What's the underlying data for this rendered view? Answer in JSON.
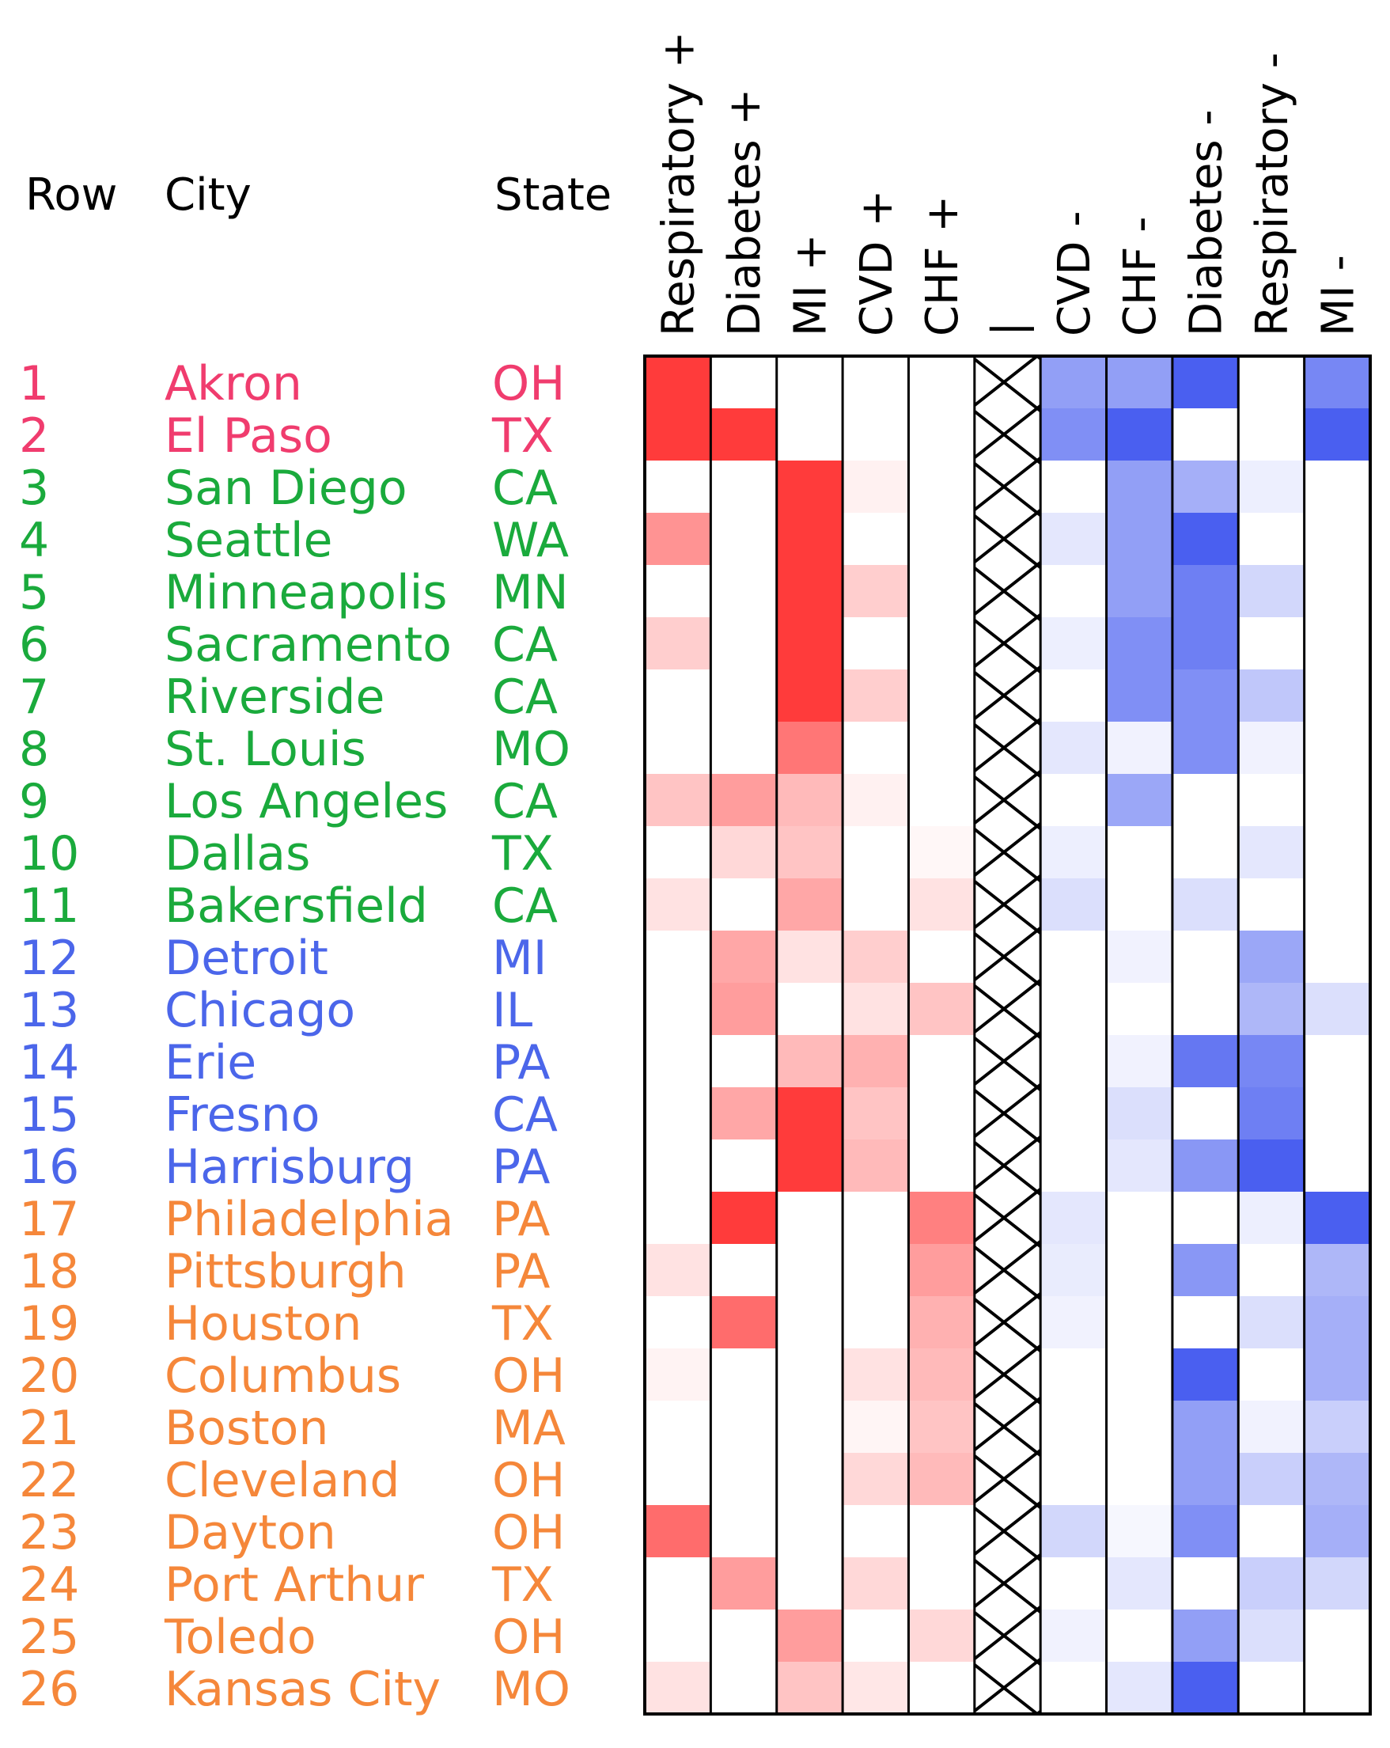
{
  "chart_data": {
    "type": "heatmap",
    "title": "",
    "xlabel": "",
    "ylabel": "",
    "headers": {
      "row": "Row",
      "city": "City",
      "state": "State"
    },
    "columns": [
      "Respiratory +",
      "Diabetes +",
      "MI +",
      "CVD +",
      "CHF +",
      "|",
      "CVD -",
      "CHF -",
      "Diabetes -",
      "Respiratory -",
      "MI -"
    ],
    "excluded_column": "|",
    "value_range": [
      -1,
      1
    ],
    "colors": {
      "positive": "#ff3b3b",
      "negative": "#4a5ff0",
      "zero": "#ffffff",
      "group1": "#f03c6e",
      "group2": "#1aaa3c",
      "group3": "#4b66ea",
      "group4": "#f5873a"
    },
    "rows": [
      {
        "row": "1",
        "city": "Akron",
        "state": "OH",
        "group": 1,
        "values": [
          1.0,
          0,
          0,
          0,
          0,
          null,
          -0.6,
          -0.6,
          -1.0,
          0,
          -0.75
        ]
      },
      {
        "row": "2",
        "city": "El Paso",
        "state": "TX",
        "group": 1,
        "values": [
          1.0,
          1.0,
          0,
          0,
          0,
          null,
          -0.7,
          -1.0,
          0,
          0,
          -1.0
        ]
      },
      {
        "row": "3",
        "city": "San Diego",
        "state": "CA",
        "group": 2,
        "values": [
          0,
          0,
          1.0,
          0.07,
          0,
          null,
          0,
          -0.6,
          -0.5,
          -0.1,
          0
        ]
      },
      {
        "row": "4",
        "city": "Seattle",
        "state": "WA",
        "group": 2,
        "values": [
          0.55,
          0,
          1.0,
          0,
          0,
          null,
          -0.15,
          -0.6,
          -1.0,
          0,
          0
        ]
      },
      {
        "row": "5",
        "city": "Minneapolis",
        "state": "MN",
        "group": 2,
        "values": [
          0,
          0,
          1.0,
          0.25,
          0,
          null,
          0,
          -0.6,
          -0.8,
          -0.25,
          0
        ]
      },
      {
        "row": "6",
        "city": "Sacramento",
        "state": "CA",
        "group": 2,
        "values": [
          0.25,
          0,
          1.0,
          0,
          0,
          null,
          -0.1,
          -0.7,
          -0.8,
          0,
          0
        ]
      },
      {
        "row": "7",
        "city": "Riverside",
        "state": "CA",
        "group": 2,
        "values": [
          0,
          0,
          1.0,
          0.25,
          0,
          null,
          0,
          -0.7,
          -0.7,
          -0.35,
          0
        ]
      },
      {
        "row": "8",
        "city": "St. Louis",
        "state": "MO",
        "group": 2,
        "values": [
          0,
          0,
          0.7,
          0,
          0,
          null,
          -0.15,
          -0.08,
          -0.7,
          -0.08,
          0
        ]
      },
      {
        "row": "9",
        "city": "Los Angeles",
        "state": "CA",
        "group": 2,
        "values": [
          0.3,
          0.5,
          0.35,
          0.07,
          0,
          null,
          0,
          -0.55,
          0,
          0,
          0
        ]
      },
      {
        "row": "10",
        "city": "Dallas",
        "state": "TX",
        "group": 2,
        "values": [
          0,
          0.2,
          0.3,
          0,
          0.04,
          null,
          -0.1,
          0,
          0,
          -0.15,
          0
        ]
      },
      {
        "row": "11",
        "city": "Bakersfield",
        "state": "CA",
        "group": 2,
        "values": [
          0.15,
          0,
          0.45,
          0,
          0.15,
          null,
          -0.2,
          0,
          -0.2,
          0,
          0
        ]
      },
      {
        "row": "12",
        "city": "Detroit",
        "state": "MI",
        "group": 3,
        "values": [
          0,
          0.45,
          0.15,
          0.25,
          0,
          null,
          0,
          -0.08,
          0,
          -0.55,
          0
        ]
      },
      {
        "row": "13",
        "city": "Chicago",
        "state": "IL",
        "group": 3,
        "values": [
          0,
          0.5,
          0,
          0.15,
          0.3,
          null,
          0,
          0,
          0,
          -0.45,
          -0.2
        ]
      },
      {
        "row": "14",
        "city": "Erie",
        "state": "PA",
        "group": 3,
        "values": [
          0,
          0,
          0.35,
          0.4,
          0,
          null,
          0,
          -0.08,
          -0.85,
          -0.75,
          0
        ]
      },
      {
        "row": "15",
        "city": "Fresno",
        "state": "CA",
        "group": 3,
        "values": [
          0,
          0.45,
          1.0,
          0.3,
          0,
          null,
          0,
          -0.2,
          0,
          -0.8,
          0
        ]
      },
      {
        "row": "16",
        "city": "Harrisburg",
        "state": "PA",
        "group": 3,
        "values": [
          0,
          0,
          1.0,
          0.35,
          0,
          null,
          0,
          -0.15,
          -0.65,
          -1.0,
          0
        ]
      },
      {
        "row": "17",
        "city": "Philadelphia",
        "state": "PA",
        "group": 4,
        "values": [
          0,
          1.0,
          0,
          0,
          0.65,
          null,
          -0.15,
          0,
          0,
          -0.1,
          -1.0
        ]
      },
      {
        "row": "18",
        "city": "Pittsburgh",
        "state": "PA",
        "group": 4,
        "values": [
          0.15,
          0,
          0,
          0,
          0.5,
          null,
          -0.12,
          0,
          -0.65,
          0,
          -0.45
        ]
      },
      {
        "row": "19",
        "city": "Houston",
        "state": "TX",
        "group": 4,
        "values": [
          0,
          0.75,
          0,
          0,
          0.4,
          null,
          -0.08,
          0,
          0,
          -0.2,
          -0.5
        ]
      },
      {
        "row": "20",
        "city": "Columbus",
        "state": "OH",
        "group": 4,
        "values": [
          0.06,
          0,
          0,
          0.15,
          0.35,
          null,
          0,
          0,
          -1.0,
          0,
          -0.5
        ]
      },
      {
        "row": "21",
        "city": "Boston",
        "state": "MA",
        "group": 4,
        "values": [
          0,
          0,
          0,
          0.05,
          0.3,
          null,
          0,
          0,
          -0.6,
          -0.08,
          -0.3
        ]
      },
      {
        "row": "22",
        "city": "Cleveland",
        "state": "OH",
        "group": 4,
        "values": [
          0,
          0,
          0,
          0.2,
          0.35,
          null,
          0,
          0,
          -0.6,
          -0.3,
          -0.45
        ]
      },
      {
        "row": "23",
        "city": "Dayton",
        "state": "OH",
        "group": 4,
        "values": [
          0.75,
          0,
          0,
          0,
          0,
          null,
          -0.25,
          -0.05,
          -0.7,
          0,
          -0.5
        ]
      },
      {
        "row": "24",
        "city": "Port Arthur",
        "state": "TX",
        "group": 4,
        "values": [
          0,
          0.5,
          0,
          0.2,
          0,
          null,
          0,
          -0.15,
          0,
          -0.3,
          -0.25
        ]
      },
      {
        "row": "25",
        "city": "Toledo",
        "state": "OH",
        "group": 4,
        "values": [
          0,
          0,
          0.5,
          0,
          0.2,
          null,
          -0.08,
          0,
          -0.6,
          -0.2,
          0
        ]
      },
      {
        "row": "26",
        "city": "Kansas City",
        "state": "MO",
        "group": 4,
        "values": [
          0.15,
          0,
          0.3,
          0.12,
          0,
          null,
          0,
          -0.15,
          -1.0,
          0,
          0
        ]
      }
    ]
  }
}
